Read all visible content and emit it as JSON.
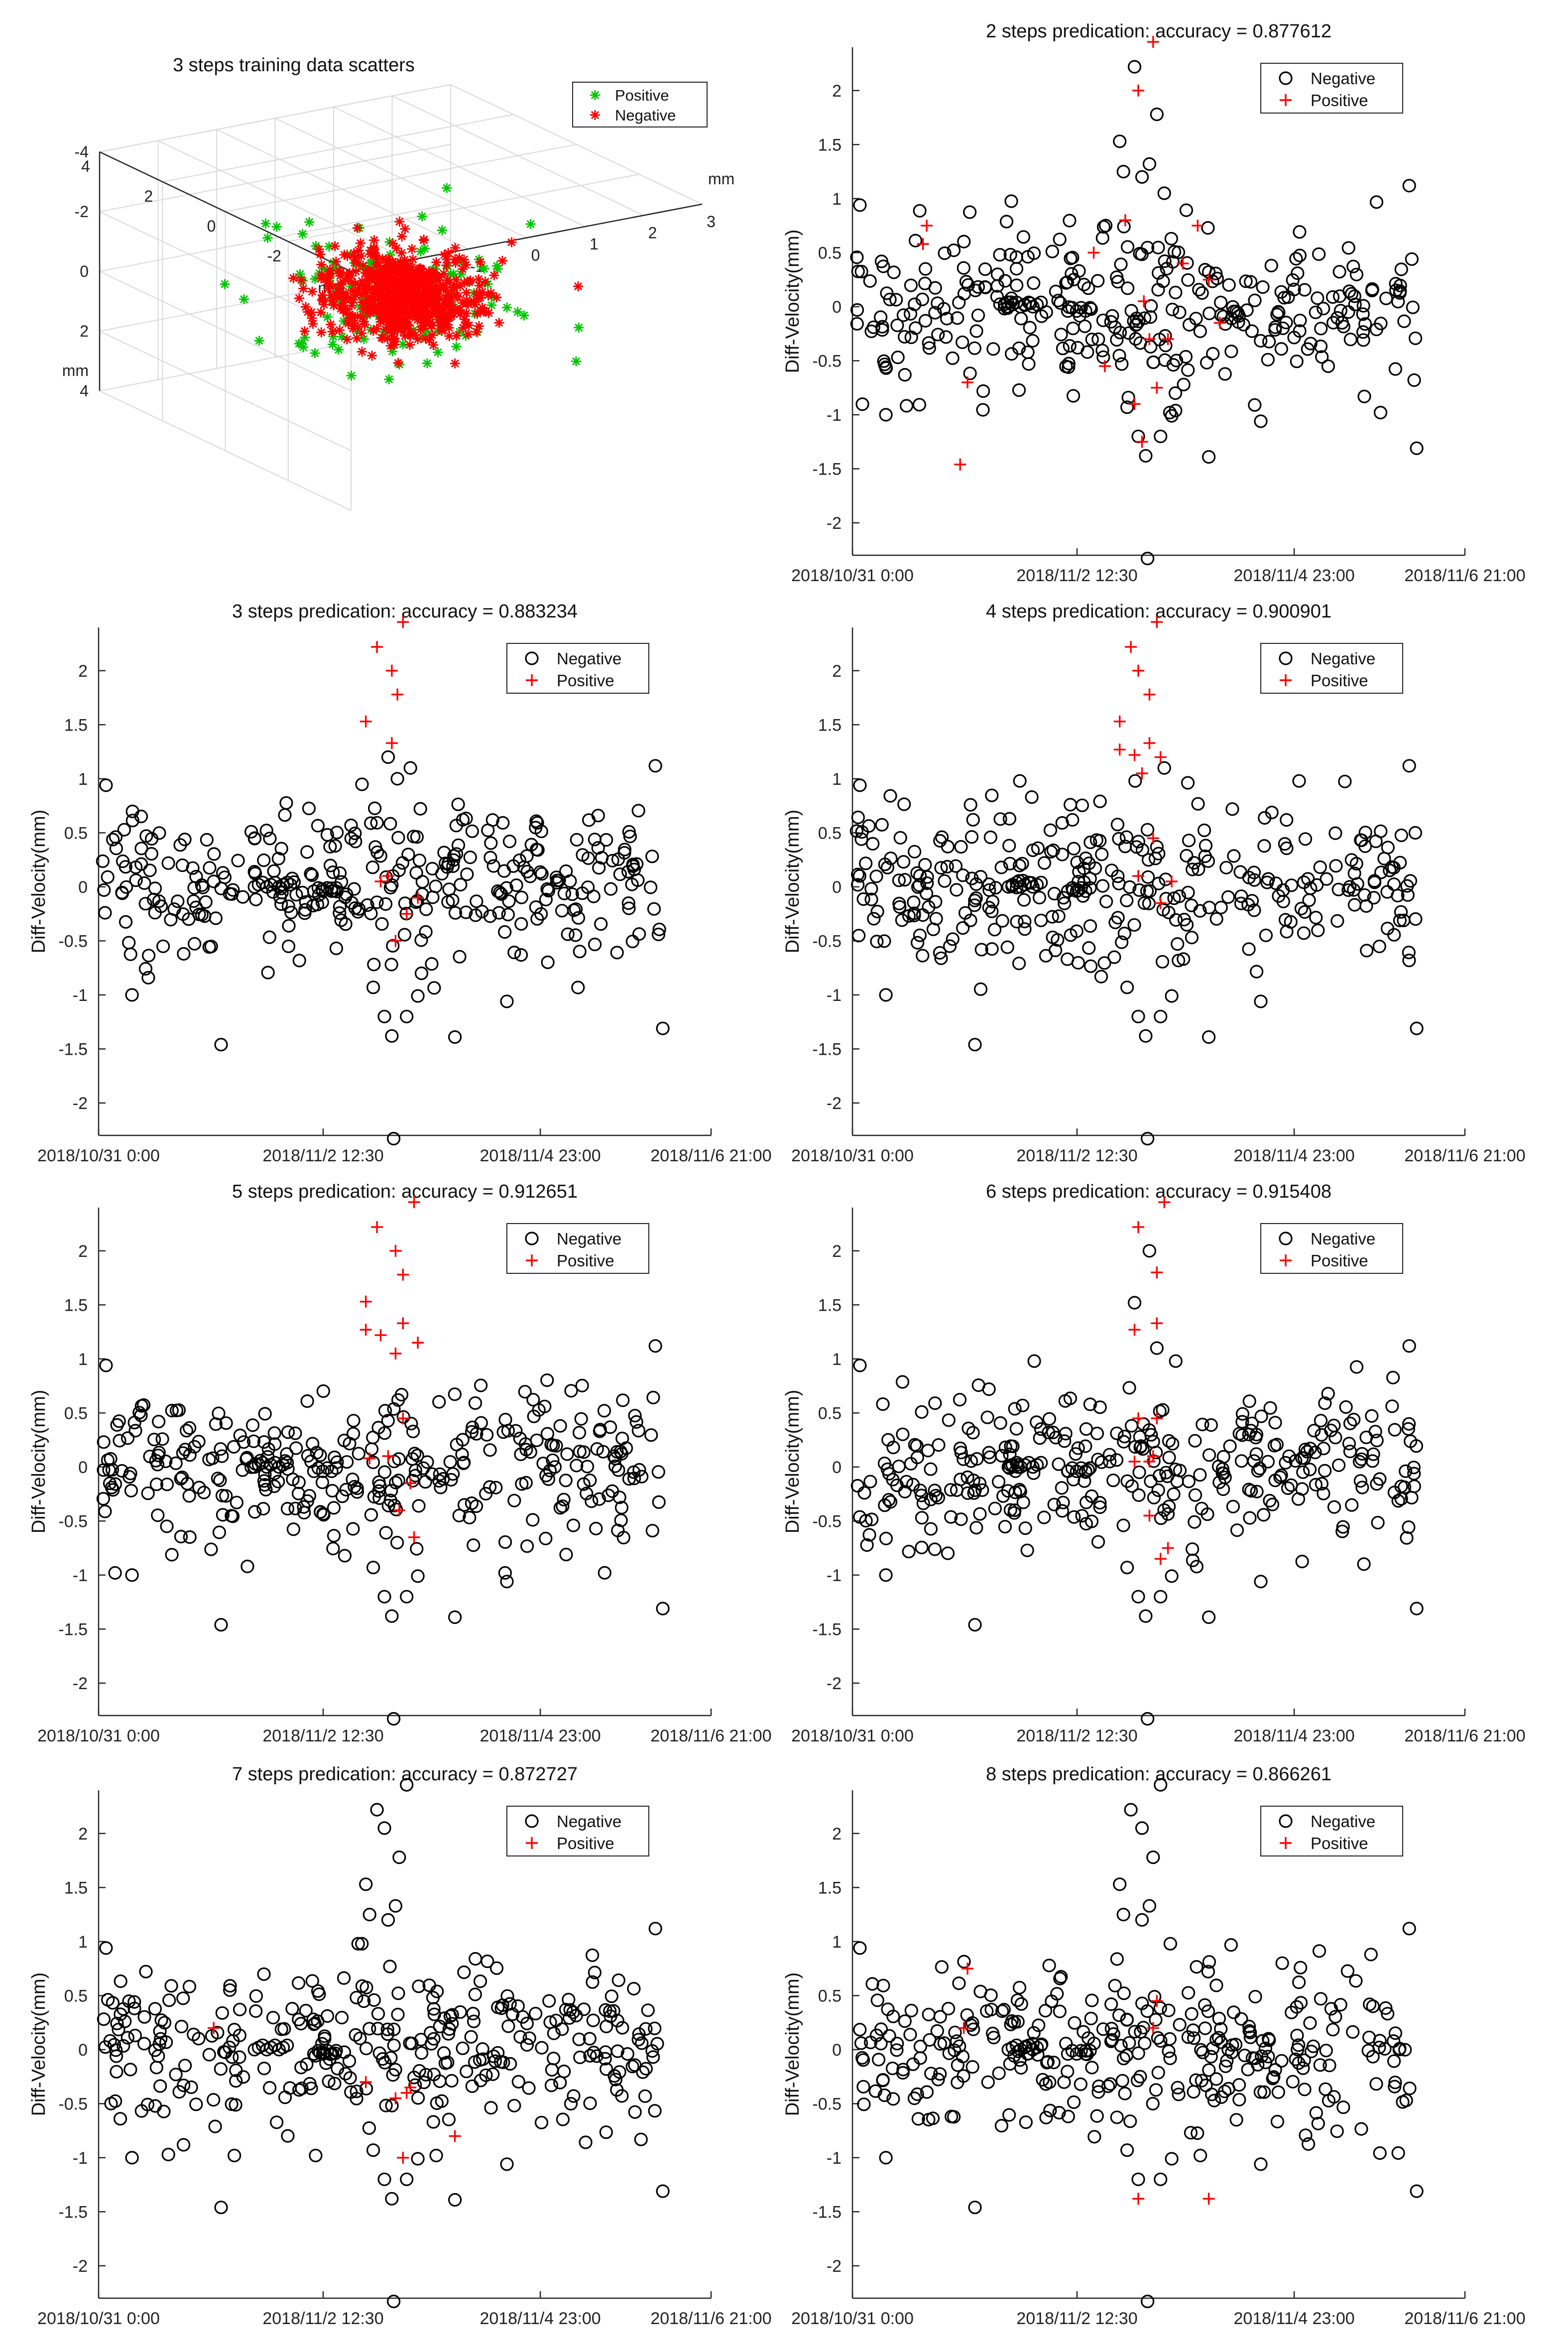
{
  "figure": {
    "colors": {
      "negative": "#000000",
      "positive": "#ff0000",
      "pos3d": "#00c800",
      "axis": "#262626",
      "grid": "#d9d9d9"
    }
  },
  "chart_data": [
    {
      "type": "scatter3d",
      "title": "3 steps training data scatters",
      "axis_unit_label": "mm",
      "xlim": [
        -3,
        3
      ],
      "ylim": [
        -4,
        4
      ],
      "zlim": [
        -4,
        4
      ],
      "x_ticks": [
        -3,
        -2,
        -1,
        0,
        1,
        2,
        3
      ],
      "y_ticks": [
        -4,
        -2,
        0,
        2,
        4
      ],
      "z_ticks": [
        -4,
        -2,
        0,
        2,
        4
      ],
      "legend": [
        {
          "label": "Positive",
          "marker": "*",
          "color": "#00c800"
        },
        {
          "label": "Negative",
          "marker": "*",
          "color": "#ff0000"
        }
      ],
      "clusters": [
        {
          "name": "Positive",
          "color": "#00c800",
          "count": 150,
          "spread": [
            0.9,
            1.2,
            1.0
          ],
          "seed": 11
        },
        {
          "name": "Negative",
          "color": "#ff0000",
          "count": 650,
          "spread": [
            0.55,
            0.75,
            0.6
          ],
          "seed": 23
        }
      ],
      "outliers": [
        {
          "name": "Negative",
          "x": 2.6,
          "y": -0.8,
          "z": 0.2
        },
        {
          "name": "Negative",
          "x": 2.0,
          "y": 0.2,
          "z": -1.0
        }
      ]
    },
    {
      "type": "scatter",
      "title": "2 steps predication: accuracy = 0.877612",
      "ylabel": "Diff-Velocity(mm)",
      "ylim": [
        -2.3,
        2.4
      ],
      "yticks": [
        -2,
        -1.5,
        -1,
        -0.5,
        0,
        0.5,
        1,
        1.5,
        2
      ],
      "xlim": [
        0,
        165
      ],
      "xticks": [
        0,
        60.5,
        119,
        165
      ],
      "xtick_labels": [
        "2018/10/31 0:00",
        "2018/11/2  12:30",
        "2018/11/4 23:00",
        "2018/11/6  21:00"
      ],
      "legend_order": [
        "Negative",
        "Positive"
      ],
      "background": {
        "count": 320,
        "sigma": 0.38,
        "seed": 101
      },
      "special": [
        {
          "x": 72,
          "y": 1.53
        },
        {
          "x": 73,
          "y": 1.25
        },
        {
          "x": 76,
          "y": 2.22
        },
        {
          "x": 78,
          "y": 1.2
        },
        {
          "x": 82,
          "y": 1.78
        },
        {
          "x": 80,
          "y": 1.32
        },
        {
          "x": 84,
          "y": 1.05
        },
        {
          "x": 74,
          "y": -0.93
        },
        {
          "x": 77,
          "y": -1.2
        },
        {
          "x": 79,
          "y": -1.38
        },
        {
          "x": 83,
          "y": -1.2
        },
        {
          "x": 86,
          "y": -1.01
        },
        {
          "x": 87,
          "y": -0.8
        },
        {
          "x": 96,
          "y": -1.39
        },
        {
          "x": 79.5,
          "y": -2.33
        },
        {
          "x": 9,
          "y": -1.0
        },
        {
          "x": 110,
          "y": -1.06
        },
        {
          "x": 152,
          "y": -1.31
        },
        {
          "x": 2,
          "y": 0.94
        },
        {
          "x": 150,
          "y": 1.12
        }
      ],
      "positives": [
        {
          "x": 81,
          "y": 2.45
        },
        {
          "x": 77,
          "y": 2.0
        },
        {
          "x": 73.5,
          "y": 0.8
        },
        {
          "x": 78.5,
          "y": 0.05
        },
        {
          "x": 76,
          "y": -0.9
        },
        {
          "x": 80,
          "y": -0.3
        },
        {
          "x": 78,
          "y": -1.25
        },
        {
          "x": 82,
          "y": -0.75
        },
        {
          "x": 89,
          "y": 0.4
        },
        {
          "x": 93,
          "y": 0.75
        },
        {
          "x": 85,
          "y": -0.3
        },
        {
          "x": 96,
          "y": 0.25
        },
        {
          "x": 31,
          "y": -0.7
        },
        {
          "x": 29,
          "y": -1.46
        },
        {
          "x": 19,
          "y": 0.58
        },
        {
          "x": 20,
          "y": 0.75
        },
        {
          "x": 68,
          "y": -0.55
        },
        {
          "x": 65,
          "y": 0.5
        },
        {
          "x": 99,
          "y": -0.15
        }
      ]
    },
    {
      "type": "scatter",
      "title": "3 steps predication: accuracy = 0.883234",
      "ylabel": "Diff-Velocity(mm)",
      "ylim": [
        -2.3,
        2.4
      ],
      "yticks": [
        -2,
        -1.5,
        -1,
        -0.5,
        0,
        0.5,
        1,
        1.5,
        2
      ],
      "xlim": [
        0,
        165
      ],
      "xticks": [
        0,
        60.5,
        119,
        165
      ],
      "xtick_labels": [
        "2018/10/31 0:00",
        "2018/11/2  12:30",
        "2018/11/4 23:00",
        "2018/11/6  21:00"
      ],
      "legend_order": [
        "Negative",
        "Positive"
      ],
      "background": {
        "count": 320,
        "sigma": 0.38,
        "seed": 202
      },
      "special": [
        {
          "x": 78,
          "y": 1.2
        },
        {
          "x": 80.5,
          "y": 1.0
        },
        {
          "x": 84,
          "y": 1.1
        },
        {
          "x": 74,
          "y": -0.93
        },
        {
          "x": 77,
          "y": -1.2
        },
        {
          "x": 79,
          "y": -1.38
        },
        {
          "x": 83,
          "y": -1.2
        },
        {
          "x": 86,
          "y": -1.01
        },
        {
          "x": 87,
          "y": -0.8
        },
        {
          "x": 96,
          "y": -1.39
        },
        {
          "x": 79.5,
          "y": -2.33
        },
        {
          "x": 9,
          "y": -1.0
        },
        {
          "x": 110,
          "y": -1.06
        },
        {
          "x": 152,
          "y": -1.31
        },
        {
          "x": 2,
          "y": 0.94
        },
        {
          "x": 150,
          "y": 1.12
        },
        {
          "x": 33,
          "y": -1.46
        }
      ],
      "positives": [
        {
          "x": 72,
          "y": 1.53
        },
        {
          "x": 75,
          "y": 2.22
        },
        {
          "x": 80.5,
          "y": 1.78
        },
        {
          "x": 79,
          "y": 2.0
        },
        {
          "x": 82,
          "y": 2.45
        },
        {
          "x": 79,
          "y": 1.33
        },
        {
          "x": 78,
          "y": 0.1
        },
        {
          "x": 80,
          "y": -0.5
        },
        {
          "x": 83,
          "y": -0.25
        },
        {
          "x": 86,
          "y": -0.1
        },
        {
          "x": 76,
          "y": 0.05
        }
      ]
    },
    {
      "type": "scatter",
      "title": "4 steps predication: accuracy = 0.900901",
      "ylabel": "Diff-Velocity(mm)",
      "ylim": [
        -2.3,
        2.4
      ],
      "yticks": [
        -2,
        -1.5,
        -1,
        -0.5,
        0,
        0.5,
        1,
        1.5,
        2
      ],
      "xlim": [
        0,
        165
      ],
      "xticks": [
        0,
        60.5,
        119,
        165
      ],
      "xtick_labels": [
        "2018/10/31 0:00",
        "2018/11/2  12:30",
        "2018/11/4 23:00",
        "2018/11/6  21:00"
      ],
      "legend_order": [
        "Negative",
        "Positive"
      ],
      "background": {
        "count": 320,
        "sigma": 0.38,
        "seed": 303
      },
      "special": [
        {
          "x": 84,
          "y": 1.1
        },
        {
          "x": 74,
          "y": -0.93
        },
        {
          "x": 77,
          "y": -1.2
        },
        {
          "x": 79,
          "y": -1.38
        },
        {
          "x": 83,
          "y": -1.2
        },
        {
          "x": 86,
          "y": -1.01
        },
        {
          "x": 96,
          "y": -1.39
        },
        {
          "x": 79.5,
          "y": -2.33
        },
        {
          "x": 9,
          "y": -1.0
        },
        {
          "x": 110,
          "y": -1.06
        },
        {
          "x": 152,
          "y": -1.31
        },
        {
          "x": 2,
          "y": 0.94
        },
        {
          "x": 150,
          "y": 1.12
        },
        {
          "x": 33,
          "y": -1.46
        }
      ],
      "positives": [
        {
          "x": 72,
          "y": 1.53
        },
        {
          "x": 75,
          "y": 2.22
        },
        {
          "x": 77,
          "y": 2.0
        },
        {
          "x": 80,
          "y": 1.78
        },
        {
          "x": 82,
          "y": 2.45
        },
        {
          "x": 72,
          "y": 1.27
        },
        {
          "x": 76,
          "y": 1.22
        },
        {
          "x": 80,
          "y": 1.33
        },
        {
          "x": 78,
          "y": 1.05
        },
        {
          "x": 83,
          "y": 1.2
        },
        {
          "x": 81,
          "y": 0.45
        },
        {
          "x": 77,
          "y": 0.1
        },
        {
          "x": 83,
          "y": -0.15
        },
        {
          "x": 86,
          "y": 0.05
        }
      ]
    },
    {
      "type": "scatter",
      "title": "5 steps predication: accuracy = 0.912651",
      "ylabel": "Diff-Velocity(mm)",
      "ylim": [
        -2.3,
        2.4
      ],
      "yticks": [
        -2,
        -1.5,
        -1,
        -0.5,
        0,
        0.5,
        1,
        1.5,
        2
      ],
      "xlim": [
        0,
        165
      ],
      "xticks": [
        0,
        60.5,
        119,
        165
      ],
      "xtick_labels": [
        "2018/10/31 0:00",
        "2018/11/2  12:30",
        "2018/11/4 23:00",
        "2018/11/6  21:00"
      ],
      "legend_order": [
        "Negative",
        "Positive"
      ],
      "background": {
        "count": 320,
        "sigma": 0.38,
        "seed": 404
      },
      "special": [
        {
          "x": 74,
          "y": -0.93
        },
        {
          "x": 77,
          "y": -1.2
        },
        {
          "x": 79,
          "y": -1.38
        },
        {
          "x": 83,
          "y": -1.2
        },
        {
          "x": 86,
          "y": -1.01
        },
        {
          "x": 96,
          "y": -1.39
        },
        {
          "x": 79.5,
          "y": -2.33
        },
        {
          "x": 9,
          "y": -1.0
        },
        {
          "x": 110,
          "y": -1.06
        },
        {
          "x": 152,
          "y": -1.31
        },
        {
          "x": 2,
          "y": 0.94
        },
        {
          "x": 150,
          "y": 1.12
        },
        {
          "x": 33,
          "y": -1.46
        }
      ],
      "positives": [
        {
          "x": 72,
          "y": 1.53
        },
        {
          "x": 75,
          "y": 2.22
        },
        {
          "x": 80,
          "y": 2.0
        },
        {
          "x": 82,
          "y": 1.78
        },
        {
          "x": 85,
          "y": 2.45
        },
        {
          "x": 72,
          "y": 1.27
        },
        {
          "x": 76,
          "y": 1.22
        },
        {
          "x": 82,
          "y": 1.33
        },
        {
          "x": 80,
          "y": 1.05
        },
        {
          "x": 86,
          "y": 1.15
        },
        {
          "x": 82,
          "y": 0.45
        },
        {
          "x": 78,
          "y": 0.1
        },
        {
          "x": 84,
          "y": -0.15
        },
        {
          "x": 81,
          "y": -0.4
        },
        {
          "x": 85,
          "y": -0.65
        },
        {
          "x": 73,
          "y": 0.08
        }
      ]
    },
    {
      "type": "scatter",
      "title": "6 steps predication: accuracy = 0.915408",
      "ylabel": "Diff-Velocity(mm)",
      "ylim": [
        -2.3,
        2.4
      ],
      "yticks": [
        -2,
        -1.5,
        -1,
        -0.5,
        0,
        0.5,
        1,
        1.5,
        2
      ],
      "xlim": [
        0,
        165
      ],
      "xticks": [
        0,
        60.5,
        119,
        165
      ],
      "xtick_labels": [
        "2018/10/31 0:00",
        "2018/11/2  12:30",
        "2018/11/4 23:00",
        "2018/11/6  21:00"
      ],
      "legend_order": [
        "Negative",
        "Positive"
      ],
      "background": {
        "count": 320,
        "sigma": 0.38,
        "seed": 505
      },
      "special": [
        {
          "x": 76,
          "y": 1.52
        },
        {
          "x": 80,
          "y": 2.0
        },
        {
          "x": 82,
          "y": 1.1
        },
        {
          "x": 74,
          "y": -0.93
        },
        {
          "x": 77,
          "y": -1.2
        },
        {
          "x": 79,
          "y": -1.38
        },
        {
          "x": 83,
          "y": -1.2
        },
        {
          "x": 86,
          "y": -1.01
        },
        {
          "x": 96,
          "y": -1.39
        },
        {
          "x": 79.5,
          "y": -2.33
        },
        {
          "x": 9,
          "y": -1.0
        },
        {
          "x": 110,
          "y": -1.06
        },
        {
          "x": 152,
          "y": -1.31
        },
        {
          "x": 2,
          "y": 0.94
        },
        {
          "x": 150,
          "y": 1.12
        },
        {
          "x": 33,
          "y": -1.46
        }
      ],
      "positives": [
        {
          "x": 77,
          "y": 2.22
        },
        {
          "x": 84,
          "y": 2.45
        },
        {
          "x": 82,
          "y": 1.8
        },
        {
          "x": 76,
          "y": 1.27
        },
        {
          "x": 82,
          "y": 1.33
        },
        {
          "x": 77,
          "y": 0.45
        },
        {
          "x": 82,
          "y": 0.45
        },
        {
          "x": 76,
          "y": 0.05
        },
        {
          "x": 81,
          "y": 0.1
        },
        {
          "x": 80,
          "y": -0.45
        },
        {
          "x": 83,
          "y": -0.85
        },
        {
          "x": 85,
          "y": -0.75
        },
        {
          "x": 80,
          "y": 0.05
        }
      ]
    },
    {
      "type": "scatter",
      "title": "7 steps predication: accuracy = 0.872727",
      "ylabel": "Diff-Velocity(mm)",
      "ylim": [
        -2.3,
        2.4
      ],
      "yticks": [
        -2,
        -1.5,
        -1,
        -0.5,
        0,
        0.5,
        1,
        1.5,
        2
      ],
      "xlim": [
        0,
        165
      ],
      "xticks": [
        0,
        60.5,
        119,
        165
      ],
      "xtick_labels": [
        "2018/10/31 0:00",
        "2018/11/2  12:30",
        "2018/11/4 23:00",
        "2018/11/6  21:00"
      ],
      "legend_order": [
        "Negative",
        "Positive"
      ],
      "background": {
        "count": 320,
        "sigma": 0.38,
        "seed": 606
      },
      "special": [
        {
          "x": 72,
          "y": 1.53
        },
        {
          "x": 73,
          "y": 1.25
        },
        {
          "x": 75,
          "y": 2.22
        },
        {
          "x": 78,
          "y": 1.2
        },
        {
          "x": 80,
          "y": 1.33
        },
        {
          "x": 81,
          "y": 1.78
        },
        {
          "x": 83,
          "y": 2.45
        },
        {
          "x": 77,
          "y": 2.05
        },
        {
          "x": 74,
          "y": -0.93
        },
        {
          "x": 77,
          "y": -1.2
        },
        {
          "x": 79,
          "y": -1.38
        },
        {
          "x": 83,
          "y": -1.2
        },
        {
          "x": 86,
          "y": -1.01
        },
        {
          "x": 96,
          "y": -1.39
        },
        {
          "x": 79.5,
          "y": -2.33
        },
        {
          "x": 9,
          "y": -1.0
        },
        {
          "x": 110,
          "y": -1.06
        },
        {
          "x": 152,
          "y": -1.31
        },
        {
          "x": 2,
          "y": 0.94
        },
        {
          "x": 150,
          "y": 1.12
        },
        {
          "x": 33,
          "y": -1.46
        }
      ],
      "positives": [
        {
          "x": 31,
          "y": 0.2
        },
        {
          "x": 72,
          "y": -0.3
        },
        {
          "x": 80,
          "y": -0.45
        },
        {
          "x": 83,
          "y": -0.4
        },
        {
          "x": 82,
          "y": -1.0
        },
        {
          "x": 96,
          "y": -0.8
        },
        {
          "x": 84,
          "y": -0.35
        }
      ]
    },
    {
      "type": "scatter",
      "title": "8 steps predication: accuracy = 0.866261",
      "ylabel": "Diff-Velocity(mm)",
      "ylim": [
        -2.3,
        2.4
      ],
      "yticks": [
        -2,
        -1.5,
        -1,
        -0.5,
        0,
        0.5,
        1,
        1.5,
        2
      ],
      "xlim": [
        0,
        165
      ],
      "xticks": [
        0,
        60.5,
        119,
        165
      ],
      "xtick_labels": [
        "2018/10/31 0:00",
        "2018/11/2  12:30",
        "2018/11/4 23:00",
        "2018/11/6  21:00"
      ],
      "legend_order": [
        "Negative",
        "Positive"
      ],
      "background": {
        "count": 320,
        "sigma": 0.38,
        "seed": 707
      },
      "special": [
        {
          "x": 72,
          "y": 1.53
        },
        {
          "x": 73,
          "y": 1.25
        },
        {
          "x": 75,
          "y": 2.22
        },
        {
          "x": 78,
          "y": 1.2
        },
        {
          "x": 80,
          "y": 1.33
        },
        {
          "x": 81,
          "y": 1.78
        },
        {
          "x": 83,
          "y": 2.45
        },
        {
          "x": 78,
          "y": 2.05
        },
        {
          "x": 74,
          "y": -0.93
        },
        {
          "x": 77,
          "y": -1.2
        },
        {
          "x": 83,
          "y": -1.2
        },
        {
          "x": 86,
          "y": -1.01
        },
        {
          "x": 79.5,
          "y": -2.33
        },
        {
          "x": 9,
          "y": -1.0
        },
        {
          "x": 110,
          "y": -1.06
        },
        {
          "x": 152,
          "y": -1.31
        },
        {
          "x": 2,
          "y": 0.94
        },
        {
          "x": 150,
          "y": 1.12
        },
        {
          "x": 33,
          "y": -1.46
        }
      ],
      "positives": [
        {
          "x": 31,
          "y": 0.75
        },
        {
          "x": 30,
          "y": 0.2
        },
        {
          "x": 77,
          "y": -1.38
        },
        {
          "x": 81,
          "y": 0.2
        },
        {
          "x": 82,
          "y": 0.45
        },
        {
          "x": 96,
          "y": -1.38
        }
      ]
    }
  ]
}
